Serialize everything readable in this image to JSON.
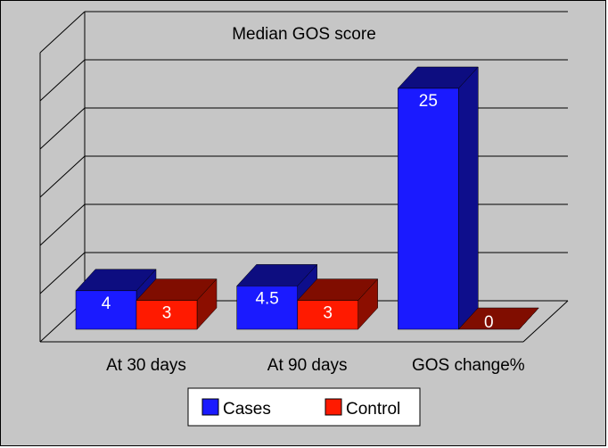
{
  "chart_data": {
    "type": "bar",
    "style": "3d-clustered",
    "title": "Median GOS score",
    "categories": [
      "At 30 days",
      "At 90 days",
      "GOS change%"
    ],
    "series": [
      {
        "name": "Cases",
        "values": [
          4,
          4.5,
          25
        ],
        "color": "#1a1aff"
      },
      {
        "name": "Control",
        "values": [
          3,
          3,
          0
        ],
        "color": "#ff1a00"
      }
    ],
    "ylim": [
      0,
      30
    ],
    "grid": true,
    "legend_position": "bottom",
    "background_color": "#c6c6c6"
  }
}
